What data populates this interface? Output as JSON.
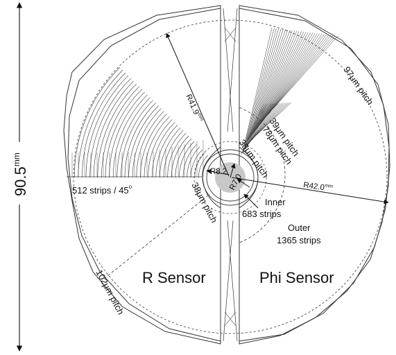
{
  "dimension": {
    "value": "90.5",
    "unit": "mm"
  },
  "labels": {
    "r_sensor": "R Sensor",
    "phi_sensor": "Phi Sensor",
    "strips_r": "512 strips / 45",
    "strips_r_degree": "o",
    "pitch_102": "102μm pitch",
    "pitch_38_r": "38μm pitch",
    "pitch_38_phi": "38μm pitch",
    "pitch_39": "39μm pitch",
    "pitch_78": "78μm pitch",
    "pitch_97": "97μm pitch",
    "inner": "Inner",
    "inner_strips": "683 strips",
    "outer": "Outer",
    "outer_strips": "1365 strips",
    "r_outer_r": "R41.9",
    "r_outer_r_unit": "mm",
    "r_outer_phi": "R42.0",
    "r_outer_phi_unit": "mm",
    "r_inner_a": "R8.2",
    "r_inner_b": "R7.0"
  },
  "colors": {
    "line": "#222222",
    "strip": "#333333",
    "beam_spot": "#c8c8c8"
  }
}
